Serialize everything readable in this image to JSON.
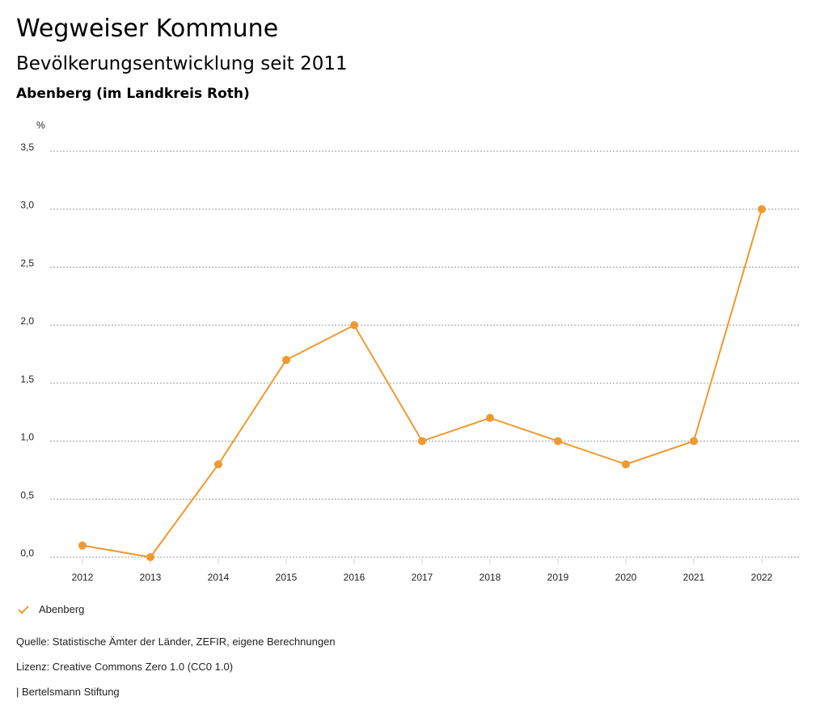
{
  "header": {
    "title": "Wegweiser Kommune",
    "subtitle": "Bevölkerungsentwicklung seit 2011",
    "region": "Abenberg (im Landkreis Roth)"
  },
  "chart_data": {
    "type": "line",
    "ylabel": "%",
    "ylim": [
      0,
      3.5
    ],
    "yticks": [
      "0,0",
      "0,5",
      "1,0",
      "1,5",
      "2,0",
      "2,5",
      "3,0",
      "3,5"
    ],
    "x": [
      "2012",
      "2013",
      "2014",
      "2015",
      "2016",
      "2017",
      "2018",
      "2019",
      "2020",
      "2021",
      "2022"
    ],
    "series": [
      {
        "name": "Abenberg",
        "color": "#f0992f",
        "values": [
          0.1,
          0.0,
          0.8,
          1.7,
          2.0,
          1.0,
          1.2,
          1.0,
          0.8,
          1.0,
          3.0
        ]
      }
    ],
    "grid": true,
    "legend": "bottom-left"
  },
  "footer": {
    "source": "Quelle: Statistische Ämter der Länder, ZEFIR, eigene Berechnungen",
    "license": "Lizenz: Creative Commons Zero 1.0 (CC0 1.0)",
    "brand": "| Bertelsmann Stiftung"
  }
}
